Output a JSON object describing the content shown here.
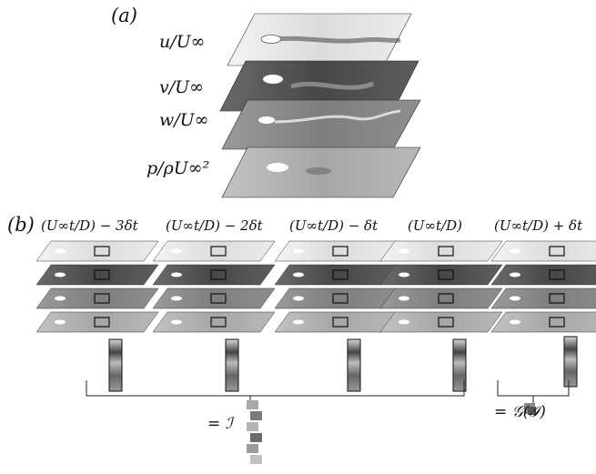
{
  "panel_a": {
    "label": "(a)",
    "layers": [
      {
        "label": "u/U∞",
        "tone": "light"
      },
      {
        "label": "v/U∞",
        "tone": "dark"
      },
      {
        "label": "w/U∞",
        "tone": "mid"
      },
      {
        "label": "p/ρU∞²",
        "tone": "light-mid"
      }
    ]
  },
  "panel_b": {
    "label": "(b)",
    "columns": [
      {
        "time_label": "(U∞t/D) − 3δt"
      },
      {
        "time_label": "(U∞t/D) − 2δt"
      },
      {
        "time_label": "(U∞t/D) − δt"
      },
      {
        "time_label": "(U∞t/D)"
      },
      {
        "time_label": "(U∞t/D) + δt"
      }
    ],
    "input_result": "= ℐ",
    "output_result": "= 𝒢(ℐ)"
  },
  "colors": {
    "field_light": "#e6e6e6",
    "field_dark": "#5a5a5a",
    "field_mid": "#8c8c8c",
    "field_lightmid": "#b4b4b4",
    "stroke": "#222222"
  }
}
